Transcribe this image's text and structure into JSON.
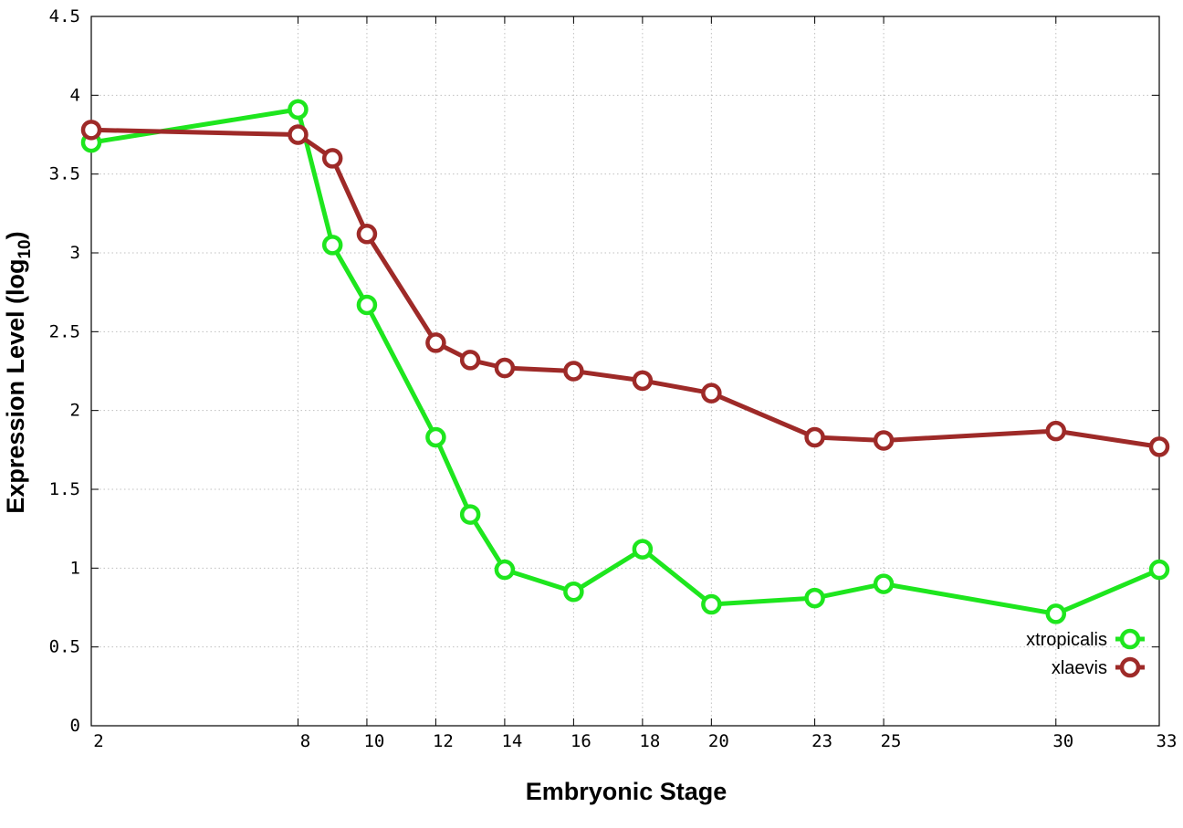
{
  "chart_data": {
    "type": "line",
    "title": "",
    "xlabel": "Embryonic Stage",
    "ylabel_main": "Expression Level (log",
    "ylabel_sub": "10",
    "ylabel_close": ")",
    "x": [
      2,
      8,
      9,
      10,
      12,
      13,
      14,
      16,
      18,
      20,
      23,
      25,
      30,
      33
    ],
    "xticks": [
      2,
      8,
      10,
      12,
      14,
      16,
      18,
      20,
      23,
      25,
      30,
      33
    ],
    "xtick_labels": [
      "2",
      "8",
      "10",
      "12",
      "14",
      "16",
      "18",
      "20",
      "23",
      "25",
      "30",
      "33"
    ],
    "yticks": [
      0,
      0.5,
      1,
      1.5,
      2,
      2.5,
      3,
      3.5,
      4,
      4.5
    ],
    "ytick_labels": [
      "0",
      "0.5",
      "1",
      "1.5",
      "2",
      "2.5",
      "3",
      "3.5",
      "4",
      "4.5"
    ],
    "xlim": [
      2,
      33
    ],
    "ylim": [
      0,
      4.5
    ],
    "grid": true,
    "legend_position": "bottom-right",
    "series": [
      {
        "name": "xtropicalis",
        "color": "#1ee61e",
        "values": [
          3.7,
          3.91,
          3.05,
          2.67,
          1.83,
          1.34,
          0.99,
          0.85,
          1.12,
          0.77,
          0.81,
          0.9,
          0.71,
          0.99
        ]
      },
      {
        "name": "xlaevis",
        "color": "#9e2a28",
        "values": [
          3.78,
          3.75,
          3.6,
          3.12,
          2.43,
          2.32,
          2.27,
          2.25,
          2.19,
          2.11,
          1.83,
          1.81,
          1.87,
          1.77
        ]
      }
    ]
  }
}
